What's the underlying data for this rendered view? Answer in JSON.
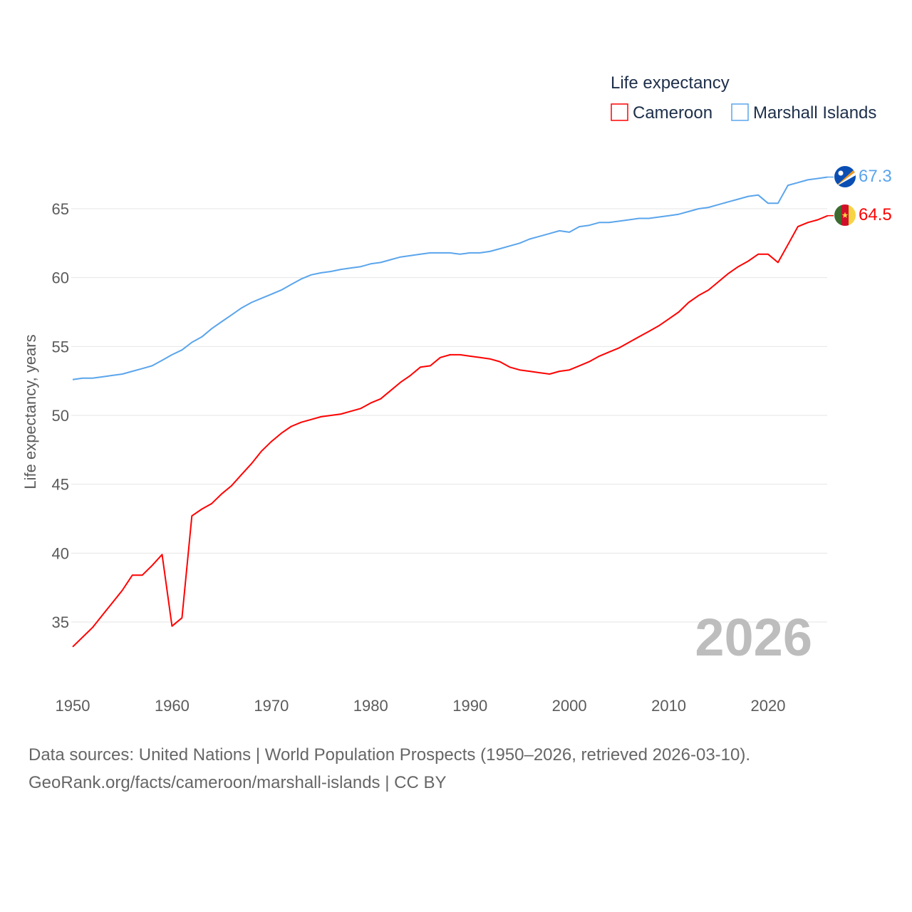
{
  "chart_data": {
    "type": "line",
    "title": "",
    "legend_title": "Life expectancy",
    "legend_position": "top-right",
    "ylabel": "Life expectancy, years",
    "xlabel": "",
    "xlim": [
      1950,
      2026
    ],
    "yticks": [
      35,
      40,
      45,
      50,
      55,
      60,
      65
    ],
    "xticks": [
      1950,
      1960,
      1970,
      1980,
      1990,
      2000,
      2010,
      2020
    ],
    "grid": true,
    "year_label": "2026",
    "x": [
      1950,
      1951,
      1952,
      1953,
      1954,
      1955,
      1956,
      1957,
      1958,
      1959,
      1960,
      1961,
      1962,
      1963,
      1964,
      1965,
      1966,
      1967,
      1968,
      1969,
      1970,
      1971,
      1972,
      1973,
      1974,
      1975,
      1976,
      1977,
      1978,
      1979,
      1980,
      1981,
      1982,
      1983,
      1984,
      1985,
      1986,
      1987,
      1988,
      1989,
      1990,
      1991,
      1992,
      1993,
      1994,
      1995,
      1996,
      1997,
      1998,
      1999,
      2000,
      2001,
      2002,
      2003,
      2004,
      2005,
      2006,
      2007,
      2008,
      2009,
      2010,
      2011,
      2012,
      2013,
      2014,
      2015,
      2016,
      2017,
      2018,
      2019,
      2020,
      2021,
      2022,
      2023,
      2024,
      2025,
      2026
    ],
    "series": [
      {
        "name": "Cameroon",
        "color": "#ff0000",
        "end_label": "64.5",
        "values": [
          33.2,
          33.9,
          34.6,
          35.5,
          36.4,
          37.3,
          38.4,
          38.4,
          39.1,
          39.9,
          34.7,
          35.3,
          42.7,
          43.2,
          43.6,
          44.3,
          44.9,
          45.7,
          46.5,
          47.4,
          48.1,
          48.7,
          49.2,
          49.5,
          49.7,
          49.9,
          50.0,
          50.1,
          50.3,
          50.5,
          50.9,
          51.2,
          51.8,
          52.4,
          52.9,
          53.5,
          53.6,
          54.2,
          54.4,
          54.4,
          54.3,
          54.2,
          54.1,
          53.9,
          53.5,
          53.3,
          53.2,
          53.1,
          53.0,
          53.2,
          53.3,
          53.6,
          53.9,
          54.3,
          54.6,
          54.9,
          55.3,
          55.7,
          56.1,
          56.5,
          57.0,
          57.5,
          58.2,
          58.7,
          59.1,
          59.7,
          60.3,
          60.8,
          61.2,
          61.7,
          61.7,
          61.1,
          62.4,
          63.7,
          64.0,
          64.2,
          64.5
        ]
      },
      {
        "name": "Marshall Islands",
        "color": "#5aa5ec",
        "end_label": "67.3",
        "values": [
          52.6,
          52.7,
          52.7,
          52.8,
          52.9,
          53.0,
          53.2,
          53.4,
          53.6,
          54.0,
          54.4,
          54.75,
          55.3,
          55.7,
          56.3,
          56.8,
          57.3,
          57.8,
          58.2,
          58.5,
          58.8,
          59.1,
          59.5,
          59.9,
          60.2,
          60.35,
          60.45,
          60.6,
          60.7,
          60.8,
          61.0,
          61.1,
          61.3,
          61.5,
          61.6,
          61.7,
          61.8,
          61.8,
          61.8,
          61.7,
          61.8,
          61.8,
          61.9,
          62.1,
          62.3,
          62.5,
          62.8,
          63.0,
          63.2,
          63.4,
          63.3,
          63.7,
          63.8,
          64.0,
          64.0,
          64.1,
          64.2,
          64.3,
          64.3,
          64.4,
          64.5,
          64.6,
          64.8,
          65.0,
          65.1,
          65.3,
          65.5,
          65.7,
          65.9,
          66.0,
          65.4,
          65.4,
          66.7,
          66.9,
          67.1,
          67.2,
          67.3
        ]
      }
    ]
  },
  "footer": {
    "line1": "Data sources: United Nations | World Population Prospects (1950–2026, retrieved 2026-03-10).",
    "line2": "GeoRank.org/facts/cameroon/marshall-islands | CC BY"
  }
}
